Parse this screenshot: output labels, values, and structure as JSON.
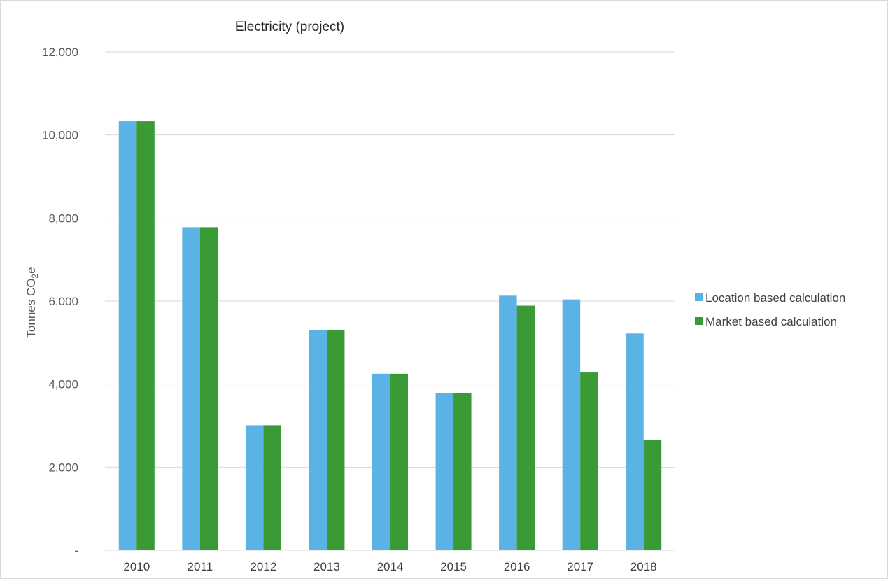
{
  "chart_data": {
    "type": "bar",
    "title": "Electricity (project)",
    "xlabel": "",
    "ylabel": "Tonnes CO2e",
    "ylabel_parts": {
      "main": "Tonnes CO",
      "sub": "2",
      "tail": "e"
    },
    "categories": [
      "2010",
      "2011",
      "2012",
      "2013",
      "2014",
      "2015",
      "2016",
      "2017",
      "2018"
    ],
    "series": [
      {
        "name": "Location based calculation",
        "color": "#5BB2E4",
        "values": [
          10330,
          7780,
          3010,
          5310,
          4250,
          3780,
          6130,
          6040,
          5220
        ]
      },
      {
        "name": "Market based calculation",
        "color": "#3A9A35",
        "values": [
          10330,
          7780,
          3010,
          5310,
          4250,
          3780,
          5890,
          4280,
          2660
        ]
      }
    ],
    "ylim": [
      0,
      12000
    ],
    "yticks": [
      {
        "value": 0,
        "label": "-"
      },
      {
        "value": 2000,
        "label": "2,000"
      },
      {
        "value": 4000,
        "label": "4,000"
      },
      {
        "value": 6000,
        "label": "6,000"
      },
      {
        "value": 8000,
        "label": "8,000"
      },
      {
        "value": 10000,
        "label": "10,000"
      },
      {
        "value": 12000,
        "label": "12,000"
      }
    ],
    "grid": true,
    "gridline_color": "#D9D9D9",
    "legend_position": "right"
  }
}
